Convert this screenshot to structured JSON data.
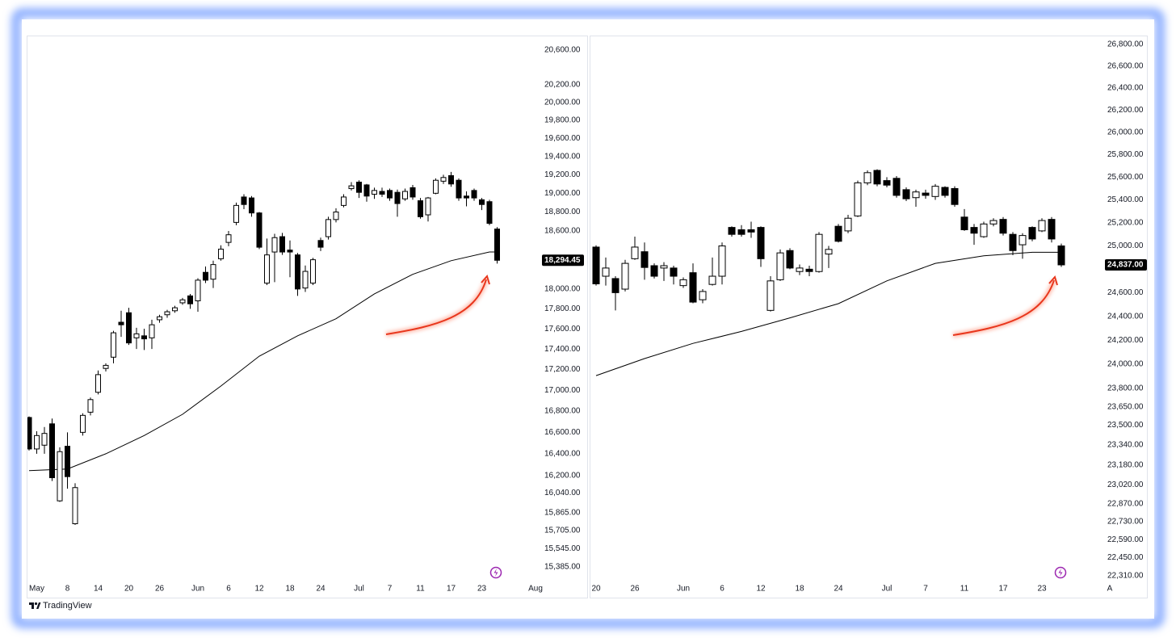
{
  "brand": "TradingView",
  "chart_data": [
    {
      "type": "candlestick",
      "log": true,
      "up_color": "#ffffff",
      "down_color": "#000000",
      "categories": [
        null,
        "May",
        null,
        null,
        null,
        "8",
        null,
        null,
        null,
        "14",
        null,
        null,
        null,
        "20",
        null,
        null,
        null,
        "26",
        null,
        null,
        null,
        null,
        "Jun",
        null,
        null,
        null,
        "6",
        null,
        null,
        null,
        "12",
        null,
        null,
        null,
        "18",
        null,
        null,
        null,
        "24",
        null,
        null,
        null,
        null,
        "Jul",
        null,
        null,
        null,
        "7",
        null,
        null,
        null,
        "11",
        null,
        null,
        null,
        "17",
        null,
        null,
        null,
        "23",
        null,
        null,
        null,
        null,
        null,
        null,
        "Aug"
      ],
      "open": [
        16740,
        16445,
        16480,
        16680,
        15970,
        16470,
        15765,
        16600,
        16790,
        16980,
        17210,
        17320,
        17665,
        17760,
        17510,
        17530,
        17510,
        17690,
        17740,
        17780,
        17860,
        17930,
        17880,
        18170,
        18100,
        18310,
        18480,
        18690,
        18960,
        18950,
        18790,
        18060,
        18380,
        18540,
        18400,
        18350,
        18010,
        18060,
        18500,
        18540,
        18720,
        18870,
        19050,
        19120,
        19090,
        18990,
        19020,
        19030,
        19010,
        18940,
        19060,
        18920,
        18770,
        19000,
        19130,
        19190,
        19140,
        18970,
        19030,
        18930,
        18910,
        18620,
        null,
        null,
        null,
        null,
        null
      ],
      "high": [
        16750,
        16610,
        16650,
        16730,
        16460,
        16600,
        16130,
        16780,
        16930,
        17190,
        17260,
        17580,
        17780,
        17810,
        17610,
        17600,
        17690,
        17740,
        17790,
        17830,
        17910,
        17950,
        18110,
        18230,
        18290,
        18450,
        18600,
        18900,
        18990,
        18970,
        18800,
        18520,
        18570,
        18580,
        18500,
        18370,
        18240,
        18320,
        18530,
        18750,
        18840,
        18990,
        19120,
        19140,
        19100,
        19060,
        19060,
        19050,
        19040,
        19050,
        19090,
        18950,
        18960,
        19160,
        19200,
        19230,
        19160,
        19020,
        19050,
        18950,
        18930,
        18640,
        null,
        null,
        null,
        null,
        null
      ],
      "low": [
        16430,
        16400,
        16400,
        16150,
        15960,
        16080,
        15755,
        16570,
        16760,
        16960,
        17180,
        17260,
        17520,
        17440,
        17400,
        17390,
        17400,
        17660,
        17710,
        17760,
        17840,
        17800,
        17770,
        18060,
        18010,
        18290,
        18440,
        18660,
        18830,
        18750,
        18410,
        18040,
        18070,
        18350,
        18120,
        17930,
        17970,
        18040,
        18390,
        18510,
        18690,
        18850,
        19030,
        18950,
        18910,
        18940,
        18960,
        18920,
        18750,
        18920,
        18930,
        18730,
        18700,
        18990,
        19100,
        19070,
        18920,
        18860,
        18920,
        18820,
        18660,
        18260,
        null,
        null,
        null,
        null,
        null
      ],
      "close": [
        16445,
        16570,
        16590,
        16180,
        16420,
        16190,
        16090,
        16760,
        16910,
        17150,
        17240,
        17560,
        17640,
        17460,
        17550,
        17500,
        17640,
        17720,
        17770,
        17810,
        17890,
        17850,
        18090,
        18090,
        18250,
        18410,
        18560,
        18870,
        18880,
        18790,
        18430,
        18350,
        18530,
        18380,
        18380,
        18000,
        18180,
        18300,
        18430,
        18720,
        18800,
        18960,
        19080,
        19010,
        18970,
        19030,
        18990,
        18950,
        18890,
        19020,
        18960,
        18750,
        18950,
        19140,
        19170,
        19100,
        18950,
        18950,
        18950,
        18880,
        18680,
        18294.45,
        null,
        null,
        null,
        null,
        null
      ],
      "ma": {
        "color": "#000000",
        "x": [
          0,
          5,
          10,
          15,
          20,
          25,
          30,
          35,
          40,
          45,
          50,
          55,
          60,
          61
        ],
        "values": [
          16245,
          16260,
          16400,
          16570,
          16770,
          17040,
          17330,
          17530,
          17700,
          17950,
          18150,
          18290,
          18380,
          18380
        ]
      },
      "last_price": {
        "value": 18294.45,
        "label": "18,294.45"
      },
      "ylim": [
        15273,
        20761
      ],
      "yticks": [
        {
          "value": 20600,
          "label": "20,600.00"
        },
        {
          "value": 20200,
          "label": "20,200.00"
        },
        {
          "value": 20000,
          "label": "20,000.00"
        },
        {
          "value": 19800,
          "label": "19,800.00"
        },
        {
          "value": 19600,
          "label": "19,600.00"
        },
        {
          "value": 19400,
          "label": "19,400.00"
        },
        {
          "value": 19200,
          "label": "19,200.00"
        },
        {
          "value": 19000,
          "label": "19,000.00"
        },
        {
          "value": 18800,
          "label": "18,800.00"
        },
        {
          "value": 18600,
          "label": "18,600.00"
        },
        {
          "value": 18000,
          "label": "18,000.00"
        },
        {
          "value": 17800,
          "label": "17,800.00"
        },
        {
          "value": 17600,
          "label": "17,600.00"
        },
        {
          "value": 17400,
          "label": "17,400.00"
        },
        {
          "value": 17200,
          "label": "17,200.00"
        },
        {
          "value": 17000,
          "label": "17,000.00"
        },
        {
          "value": 16800,
          "label": "16,800.00"
        },
        {
          "value": 16600,
          "label": "16,600.00"
        },
        {
          "value": 16400,
          "label": "16,400.00"
        },
        {
          "value": 16200,
          "label": "16,200.00"
        },
        {
          "value": 16040,
          "label": "16,040.00"
        },
        {
          "value": 15865,
          "label": "15,865.00"
        },
        {
          "value": 15705,
          "label": "15,705.00"
        },
        {
          "value": 15545,
          "label": "15,545.00"
        },
        {
          "value": 15385,
          "label": "15,385.00"
        }
      ]
    },
    {
      "type": "candlestick",
      "log": true,
      "up_color": "#ffffff",
      "down_color": "#000000",
      "categories": [
        "20",
        null,
        null,
        null,
        "26",
        null,
        null,
        null,
        null,
        "Jun",
        null,
        null,
        null,
        "6",
        null,
        null,
        null,
        "12",
        null,
        null,
        null,
        "18",
        null,
        null,
        null,
        "24",
        null,
        null,
        null,
        null,
        "Jul",
        null,
        null,
        null,
        "7",
        null,
        null,
        null,
        "11",
        null,
        null,
        null,
        "17",
        null,
        null,
        null,
        "23",
        null,
        null,
        null,
        null,
        null,
        null,
        "A"
      ],
      "open": [
        24990,
        24740,
        24720,
        24630,
        24890,
        24950,
        24830,
        24810,
        24810,
        24660,
        24770,
        24540,
        24670,
        24740,
        25160,
        25140,
        25140,
        25160,
        24450,
        24710,
        24960,
        24780,
        24800,
        24780,
        24930,
        25170,
        25130,
        25260,
        25550,
        25660,
        25570,
        25590,
        25490,
        25420,
        25460,
        25430,
        25510,
        25500,
        25250,
        25160,
        25080,
        25190,
        25230,
        25100,
        25010,
        25160,
        25130,
        25230,
        25000,
        null,
        null,
        null,
        null,
        null
      ],
      "high": [
        25005,
        24900,
        24740,
        24880,
        25080,
        25030,
        24850,
        24860,
        24830,
        24730,
        24850,
        24630,
        24900,
        25030,
        25170,
        25180,
        25210,
        25170,
        24740,
        24970,
        24980,
        24840,
        24830,
        25120,
        25000,
        25190,
        25270,
        25570,
        25660,
        25670,
        25600,
        25610,
        25510,
        25490,
        25490,
        25540,
        25520,
        25520,
        25320,
        25190,
        25210,
        25240,
        25250,
        25120,
        25110,
        25170,
        25240,
        25250,
        25020,
        null,
        null,
        null,
        null,
        null
      ],
      "low": [
        24660,
        24660,
        24450,
        24610,
        24880,
        24710,
        24720,
        24700,
        24670,
        24640,
        24510,
        24510,
        24660,
        24670,
        25080,
        25080,
        25070,
        24820,
        24440,
        24700,
        24800,
        24750,
        24740,
        24770,
        24810,
        25030,
        25110,
        25250,
        25530,
        25520,
        25510,
        25420,
        25390,
        25340,
        25410,
        25400,
        25420,
        25340,
        25130,
        25010,
        25070,
        25170,
        25090,
        24920,
        24890,
        25040,
        25120,
        25030,
        24820,
        null,
        null,
        null,
        null,
        null
      ],
      "close": [
        24675,
        24810,
        24600,
        24850,
        24990,
        24815,
        24740,
        24830,
        24740,
        24710,
        24520,
        24610,
        24740,
        25000,
        25100,
        25100,
        25120,
        24890,
        24700,
        24940,
        24810,
        24810,
        24780,
        25100,
        24970,
        25040,
        25240,
        25550,
        25640,
        25540,
        25530,
        25440,
        25410,
        25470,
        25440,
        25520,
        25440,
        25360,
        25140,
        25110,
        25190,
        25220,
        25110,
        24960,
        25090,
        25060,
        25220,
        25060,
        24837,
        null,
        null,
        null,
        null,
        null
      ],
      "ma": {
        "color": "#000000",
        "x": [
          0,
          5,
          10,
          15,
          20,
          25,
          30,
          35,
          40,
          45,
          48
        ],
        "values": [
          23906,
          24047,
          24173,
          24273,
          24387,
          24507,
          24700,
          24850,
          24915,
          24945,
          24945
        ]
      },
      "last_price": {
        "value": 24837,
        "label": "24,837.00"
      },
      "ylim": [
        22279,
        26875
      ],
      "yticks": [
        {
          "value": 26800,
          "label": "26,800.00"
        },
        {
          "value": 26600,
          "label": "26,600.00"
        },
        {
          "value": 26400,
          "label": "26,400.00"
        },
        {
          "value": 26200,
          "label": "26,200.00"
        },
        {
          "value": 26000,
          "label": "26,000.00"
        },
        {
          "value": 25800,
          "label": "25,800.00"
        },
        {
          "value": 25600,
          "label": "25,600.00"
        },
        {
          "value": 25400,
          "label": "25,400.00"
        },
        {
          "value": 25200,
          "label": "25,200.00"
        },
        {
          "value": 25000,
          "label": "25,000.00"
        },
        {
          "value": 24600,
          "label": "24,600.00"
        },
        {
          "value": 24400,
          "label": "24,400.00"
        },
        {
          "value": 24200,
          "label": "24,200.00"
        },
        {
          "value": 24000,
          "label": "24,000.00"
        },
        {
          "value": 23800,
          "label": "23,800.00"
        },
        {
          "value": 23650,
          "label": "23,650.00"
        },
        {
          "value": 23500,
          "label": "23,500.00"
        },
        {
          "value": 23340,
          "label": "23,340.00"
        },
        {
          "value": 23180,
          "label": "23,180.00"
        },
        {
          "value": 23020,
          "label": "23,020.00"
        },
        {
          "value": 22870,
          "label": "22,870.00"
        },
        {
          "value": 22730,
          "label": "22,730.00"
        },
        {
          "value": 22590,
          "label": "22,590.00"
        },
        {
          "value": 22450,
          "label": "22,450.00"
        },
        {
          "value": 22310,
          "label": "22,310.00"
        }
      ]
    }
  ]
}
